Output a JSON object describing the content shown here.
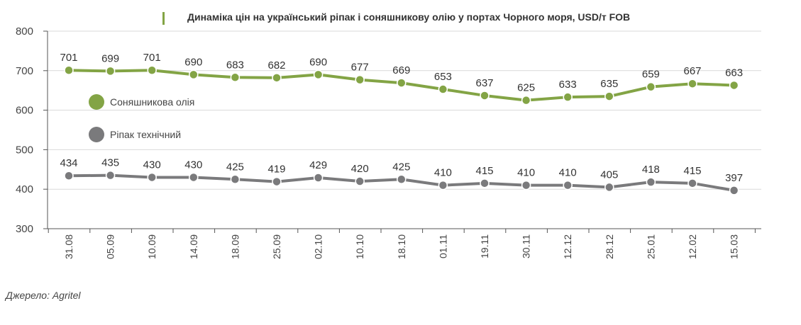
{
  "chart_data": {
    "type": "line",
    "title": "Динаміка цін на український ріпак і соняшникову олію у портах Чорного моря, USD/т FOB",
    "xlabel": "",
    "ylabel": "",
    "ylim": [
      300,
      800
    ],
    "yticks": [
      300,
      400,
      500,
      600,
      700,
      800
    ],
    "grid": true,
    "categories": [
      "31.08",
      "05.09",
      "10.09",
      "14.09",
      "18.09",
      "25.09",
      "02.10",
      "10.10",
      "18.10",
      "01.11",
      "19.11",
      "30.11",
      "12.12",
      "28.12",
      "25.01",
      "12.02",
      "15.03"
    ],
    "series": [
      {
        "name": "Соняшникова олія",
        "color": "#83a445",
        "values": [
          701,
          699,
          701,
          690,
          683,
          682,
          690,
          677,
          669,
          653,
          637,
          625,
          633,
          635,
          659,
          667,
          663
        ]
      },
      {
        "name": "Ріпак технічний",
        "color": "#7a7a7c",
        "values": [
          434,
          435,
          430,
          430,
          425,
          419,
          429,
          420,
          425,
          410,
          415,
          410,
          410,
          405,
          418,
          415,
          397
        ]
      }
    ],
    "legend_position": "left",
    "source": "Джерело: Agritel"
  },
  "colors": {
    "accent": "#83a445",
    "grid": "#d9d9d9",
    "axis": "#555555"
  }
}
